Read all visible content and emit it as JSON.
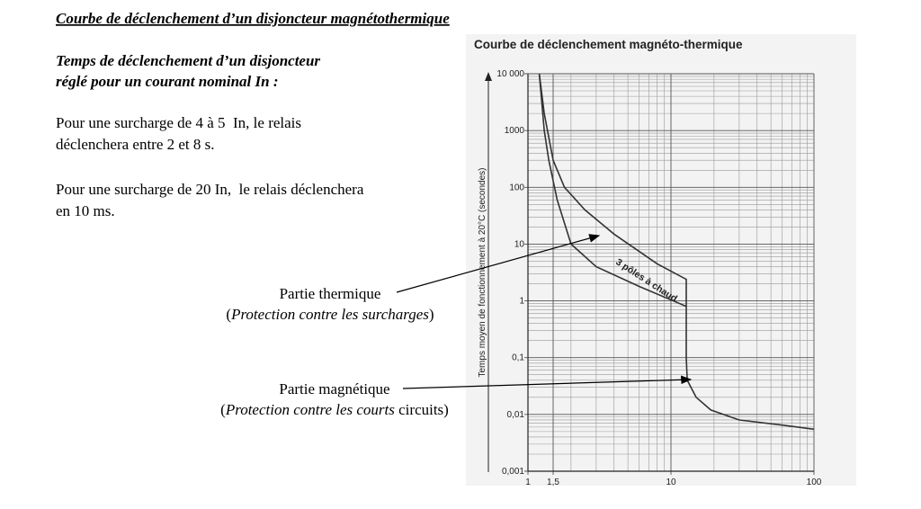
{
  "document": {
    "title": "Courbe de déclenchement d’un disjoncteur magnétothermique",
    "subtitle_lines": [
      "Temps de déclenchement d’un disjoncteur",
      "réglé pour un courant nominal In :"
    ],
    "paragraphs": [
      [
        "Pour une surcharge de 4 à 5  In, le relais",
        "déclenchera entre 2 et 8 s."
      ],
      [
        "Pour une surcharge de 20 In,  le relais déclenchera",
        "en 10 ms."
      ]
    ],
    "annotations": [
      {
        "label": "Partie thermique",
        "note": {
          "open": "(",
          "italic": "Protection contre les surcharges",
          "close": ")"
        }
      },
      {
        "label": "Partie magnétique",
        "note": {
          "open": "(",
          "italic": "Protection contre les courts",
          "close": " circuits)"
        }
      }
    ]
  },
  "chart_data": {
    "type": "line",
    "title": "Courbe de déclenchement magnéto-thermique",
    "y_label": "Temps moyen de fonctionnement à 20°C (secondes)",
    "annotation": "3 pôles à chaud",
    "log_x": true,
    "log_y": true,
    "grid": true,
    "xlim": [
      1,
      100
    ],
    "ylim": [
      0.001,
      10000
    ],
    "xticks": [
      1,
      {
        "value": 1.5,
        "label": "1,5"
      },
      10,
      100
    ],
    "yticks": [
      {
        "value": 0.001,
        "label": "0,001"
      },
      {
        "value": 0.01,
        "label": "0,01"
      },
      {
        "value": 0.1,
        "label": "0,1"
      },
      1,
      10,
      100,
      1000,
      {
        "value": 10000,
        "label": "10 000"
      }
    ],
    "series": [
      {
        "color": "#333333",
        "x": [
          1.2,
          1.3,
          1.5,
          1.8,
          2.5,
          4,
          8,
          12.8,
          12.8
        ],
        "values": [
          10000,
          2000,
          300,
          100,
          40,
          15,
          4.5,
          2.4,
          0.8
        ]
      },
      {
        "color": "#333333",
        "x": [
          1.2,
          1.3,
          1.4,
          1.6,
          2,
          3,
          6,
          12.8,
          12.8,
          13,
          15,
          19,
          30,
          60,
          100
        ],
        "values": [
          10000,
          1000,
          300,
          60,
          10,
          4,
          1.8,
          0.8,
          0.1,
          0.04,
          0.02,
          0.012,
          0.008,
          0.0065,
          0.0055
        ]
      }
    ]
  }
}
